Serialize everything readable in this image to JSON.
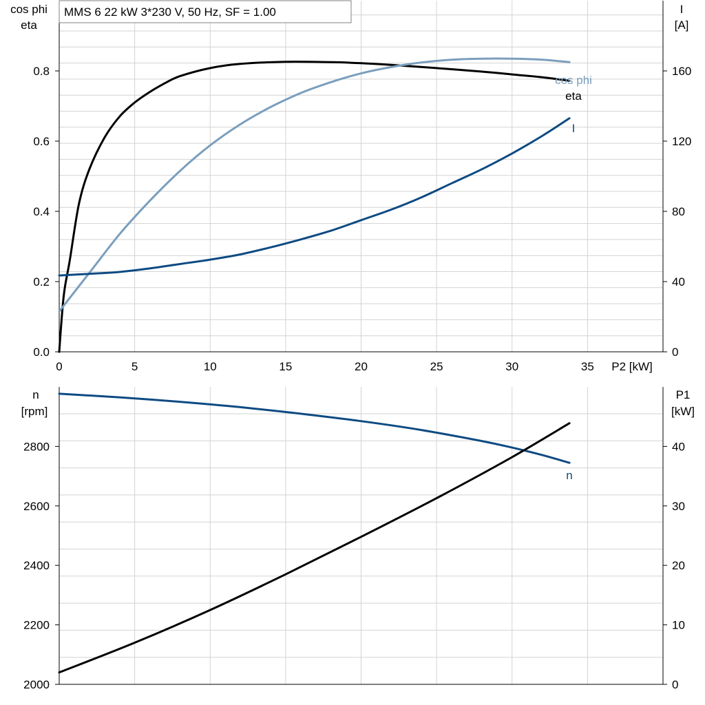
{
  "title_box": "MMS 6   22 kW   3*230 V, 50 Hz, SF = 1.00",
  "colors": {
    "eta": "#000000",
    "cosphi": "#7a9ebd",
    "current": "#0d4a82",
    "speed": "#0d4a82",
    "p1": "#000000"
  },
  "chart_data": [
    {
      "type": "line",
      "panel": "top",
      "xlabel": "P2 [kW]",
      "xlim": [
        0,
        40
      ],
      "x_ticks": [
        "0",
        "5",
        "10",
        "15",
        "20",
        "25",
        "30",
        "35"
      ],
      "ylabel_left_line1": "cos phi",
      "ylabel_left_line2": "eta",
      "ylim_left": [
        0,
        1.0
      ],
      "y_ticks_left": [
        "0.0",
        "0.2",
        "0.4",
        "0.6",
        "0.8"
      ],
      "ylabel_right_line1": "I",
      "ylabel_right_line2": "[A]",
      "ylim_right": [
        0,
        200
      ],
      "y_ticks_right": [
        "0",
        "40",
        "80",
        "120",
        "160"
      ],
      "series": [
        {
          "name": "eta",
          "axis": "left",
          "x": [
            0,
            0.3,
            0.7,
            1.3,
            2,
            3,
            4,
            5,
            6,
            7,
            8,
            10,
            12,
            15,
            18,
            20,
            22,
            25,
            28,
            30,
            32,
            33.8
          ],
          "y": [
            0.0,
            0.16,
            0.26,
            0.42,
            0.52,
            0.61,
            0.67,
            0.71,
            0.74,
            0.765,
            0.785,
            0.808,
            0.82,
            0.826,
            0.825,
            0.822,
            0.817,
            0.808,
            0.798,
            0.79,
            0.782,
            0.772
          ]
        },
        {
          "name": "cos phi",
          "axis": "left",
          "x": [
            0,
            2,
            4,
            6,
            8,
            10,
            12,
            14,
            16,
            18,
            20,
            22,
            24,
            26,
            28,
            30,
            32,
            33.8
          ],
          "y": [
            0.115,
            0.225,
            0.335,
            0.43,
            0.515,
            0.588,
            0.648,
            0.697,
            0.737,
            0.768,
            0.793,
            0.811,
            0.824,
            0.832,
            0.835,
            0.835,
            0.832,
            0.825
          ]
        },
        {
          "name": "I",
          "axis": "right",
          "x": [
            0,
            2,
            4,
            6,
            8,
            10,
            12,
            14,
            16,
            18,
            20,
            22,
            24,
            26,
            28,
            30,
            32,
            33.8
          ],
          "y": [
            43.5,
            44.4,
            45.5,
            47.5,
            50,
            52.5,
            55.5,
            59.5,
            64,
            69,
            75,
            81,
            88,
            96,
            104,
            113,
            123,
            133
          ]
        }
      ]
    },
    {
      "type": "line",
      "panel": "bottom",
      "xlim": [
        0,
        40
      ],
      "ylabel_left_line1": "n",
      "ylabel_left_line2": "[rpm]",
      "ylim_left": [
        2000,
        3000
      ],
      "y_ticks_left": [
        "2000",
        "2200",
        "2400",
        "2600",
        "2800"
      ],
      "ylabel_right_line1": "P1",
      "ylabel_right_line2": "[kW]",
      "ylim_right": [
        0,
        50
      ],
      "y_ticks_right": [
        "0",
        "10",
        "20",
        "30",
        "40"
      ],
      "series": [
        {
          "name": "n",
          "axis": "left",
          "x": [
            0,
            4,
            8,
            12,
            16,
            20,
            24,
            28,
            30,
            32,
            33.8
          ],
          "y": [
            2977,
            2965,
            2950,
            2932,
            2910,
            2885,
            2855,
            2818,
            2796,
            2771,
            2745
          ]
        },
        {
          "name": "P1",
          "axis": "right",
          "x": [
            0,
            5,
            10,
            15,
            20,
            25,
            30,
            33.8
          ],
          "y": [
            2.0,
            7.0,
            12.5,
            18.5,
            24.8,
            31.3,
            38.2,
            43.9
          ]
        }
      ]
    }
  ]
}
